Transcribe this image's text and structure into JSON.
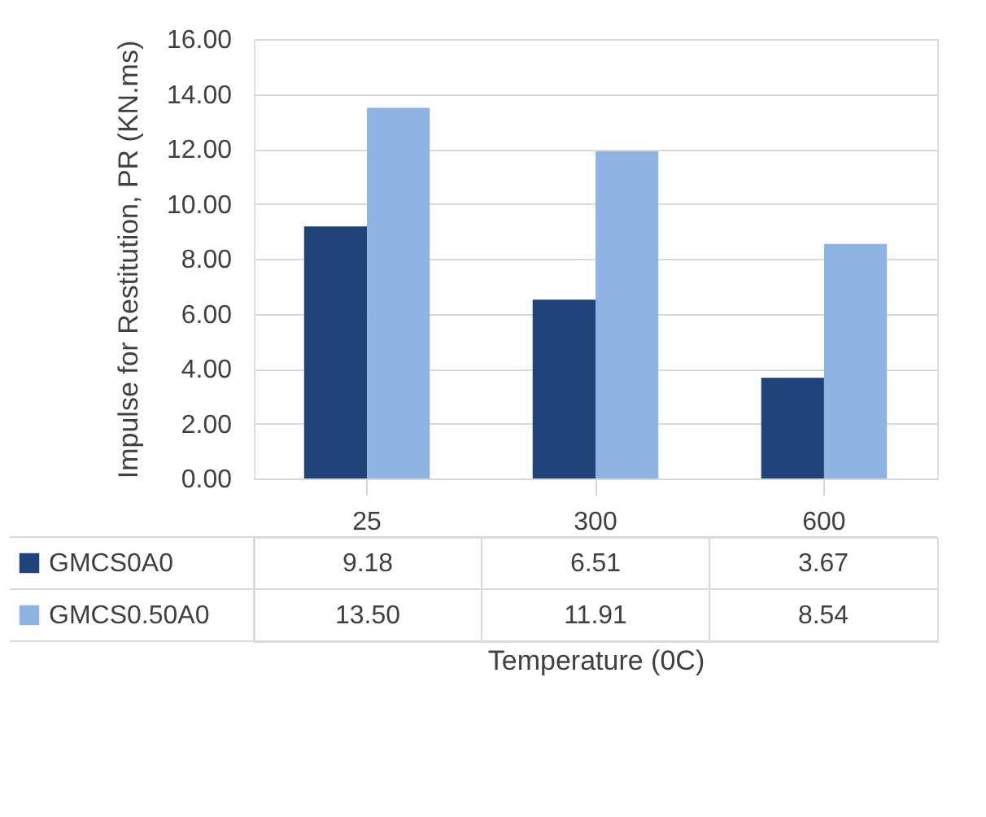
{
  "chart_data": {
    "type": "bar",
    "xlabel": "Temperature (0C)",
    "ylabel": "Impulse for Restitution, PR (KN.ms)",
    "categories": [
      "25",
      "300",
      "600"
    ],
    "series": [
      {
        "name": "GMCS0A0",
        "color": "#1f4479",
        "values": [
          9.18,
          6.51,
          3.67
        ],
        "value_labels": [
          "9.18",
          "6.51",
          "3.67"
        ]
      },
      {
        "name": "GMCS0.50A0",
        "color": "#8eb4e3",
        "values": [
          13.5,
          11.91,
          8.54
        ],
        "value_labels": [
          "13.50",
          "11.91",
          "8.54"
        ]
      }
    ],
    "ylim": [
      0,
      16
    ],
    "yticks": [
      {
        "value": 0,
        "label": "0.00"
      },
      {
        "value": 2,
        "label": "2.00"
      },
      {
        "value": 4,
        "label": "4.00"
      },
      {
        "value": 6,
        "label": "6.00"
      },
      {
        "value": 8,
        "label": "8.00"
      },
      {
        "value": 10,
        "label": "10.00"
      },
      {
        "value": 12,
        "label": "12.00"
      },
      {
        "value": 14,
        "label": "14.00"
      },
      {
        "value": 16,
        "label": "16.00"
      }
    ],
    "grid": "y",
    "legend": "bottom"
  }
}
